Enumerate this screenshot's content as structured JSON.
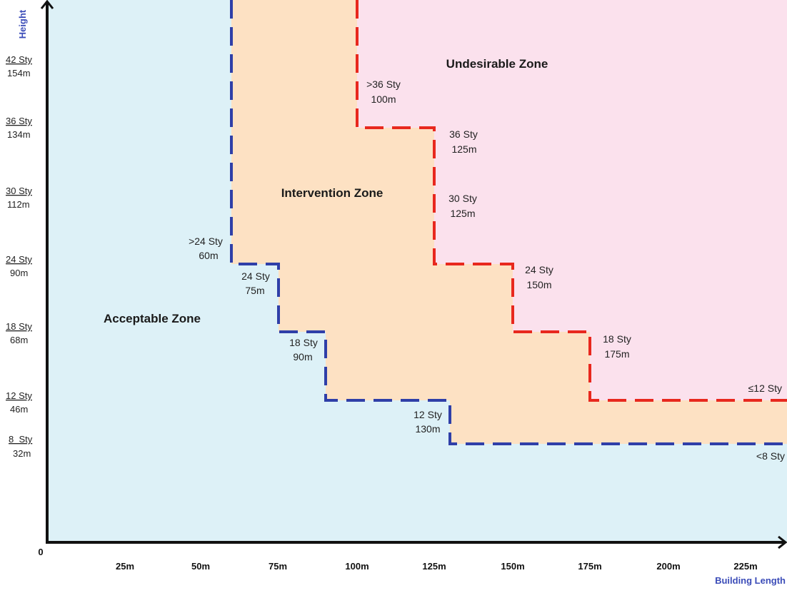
{
  "colors": {
    "acceptable_fill": "#ddf1f7",
    "intervention_fill": "#fde1c3",
    "undesirable_fill": "#fbe1ed",
    "blue_boundary": "#2f3fa8",
    "red_boundary": "#e8281e",
    "axis": "#111111"
  },
  "axes": {
    "y_title": "Height",
    "x_title": "Building Length",
    "origin_label": "0",
    "x_ticks": [
      "25m",
      "50m",
      "75m",
      "100m",
      "125m",
      "150m",
      "175m",
      "200m",
      "225m"
    ],
    "y_ticks": [
      {
        "storeys": "42 Sty",
        "height": "154m"
      },
      {
        "storeys": "36 Sty",
        "height": "134m"
      },
      {
        "storeys": "30 Sty",
        "height": "112m"
      },
      {
        "storeys": "24 Sty",
        "height": "90m"
      },
      {
        "storeys": "18 Sty",
        "height": "68m"
      },
      {
        "storeys": "12 Sty",
        "height": "46m"
      },
      {
        "storeys": "8  Sty",
        "height": "32m"
      }
    ]
  },
  "zones": {
    "acceptable": "Acceptable Zone",
    "intervention": "Intervention Zone",
    "undesirable": "Undesirable Zone"
  },
  "annotations": {
    "blue": [
      {
        "line1": ">24 Sty",
        "line2": "60m"
      },
      {
        "line1": "24 Sty",
        "line2": "75m"
      },
      {
        "line1": "18 Sty",
        "line2": "90m"
      },
      {
        "line1": "12 Sty",
        "line2": "130m"
      },
      {
        "line1": "<8 Sty",
        "line2": ""
      }
    ],
    "red": [
      {
        "line1": ">36 Sty",
        "line2": "100m"
      },
      {
        "line1": "36 Sty",
        "line2": "125m"
      },
      {
        "line1": "30 Sty",
        "line2": "125m"
      },
      {
        "line1": "24 Sty",
        "line2": "150m"
      },
      {
        "line1": "18 Sty",
        "line2": "175m"
      },
      {
        "line1": "≤12 Sty",
        "line2": ""
      }
    ]
  }
}
